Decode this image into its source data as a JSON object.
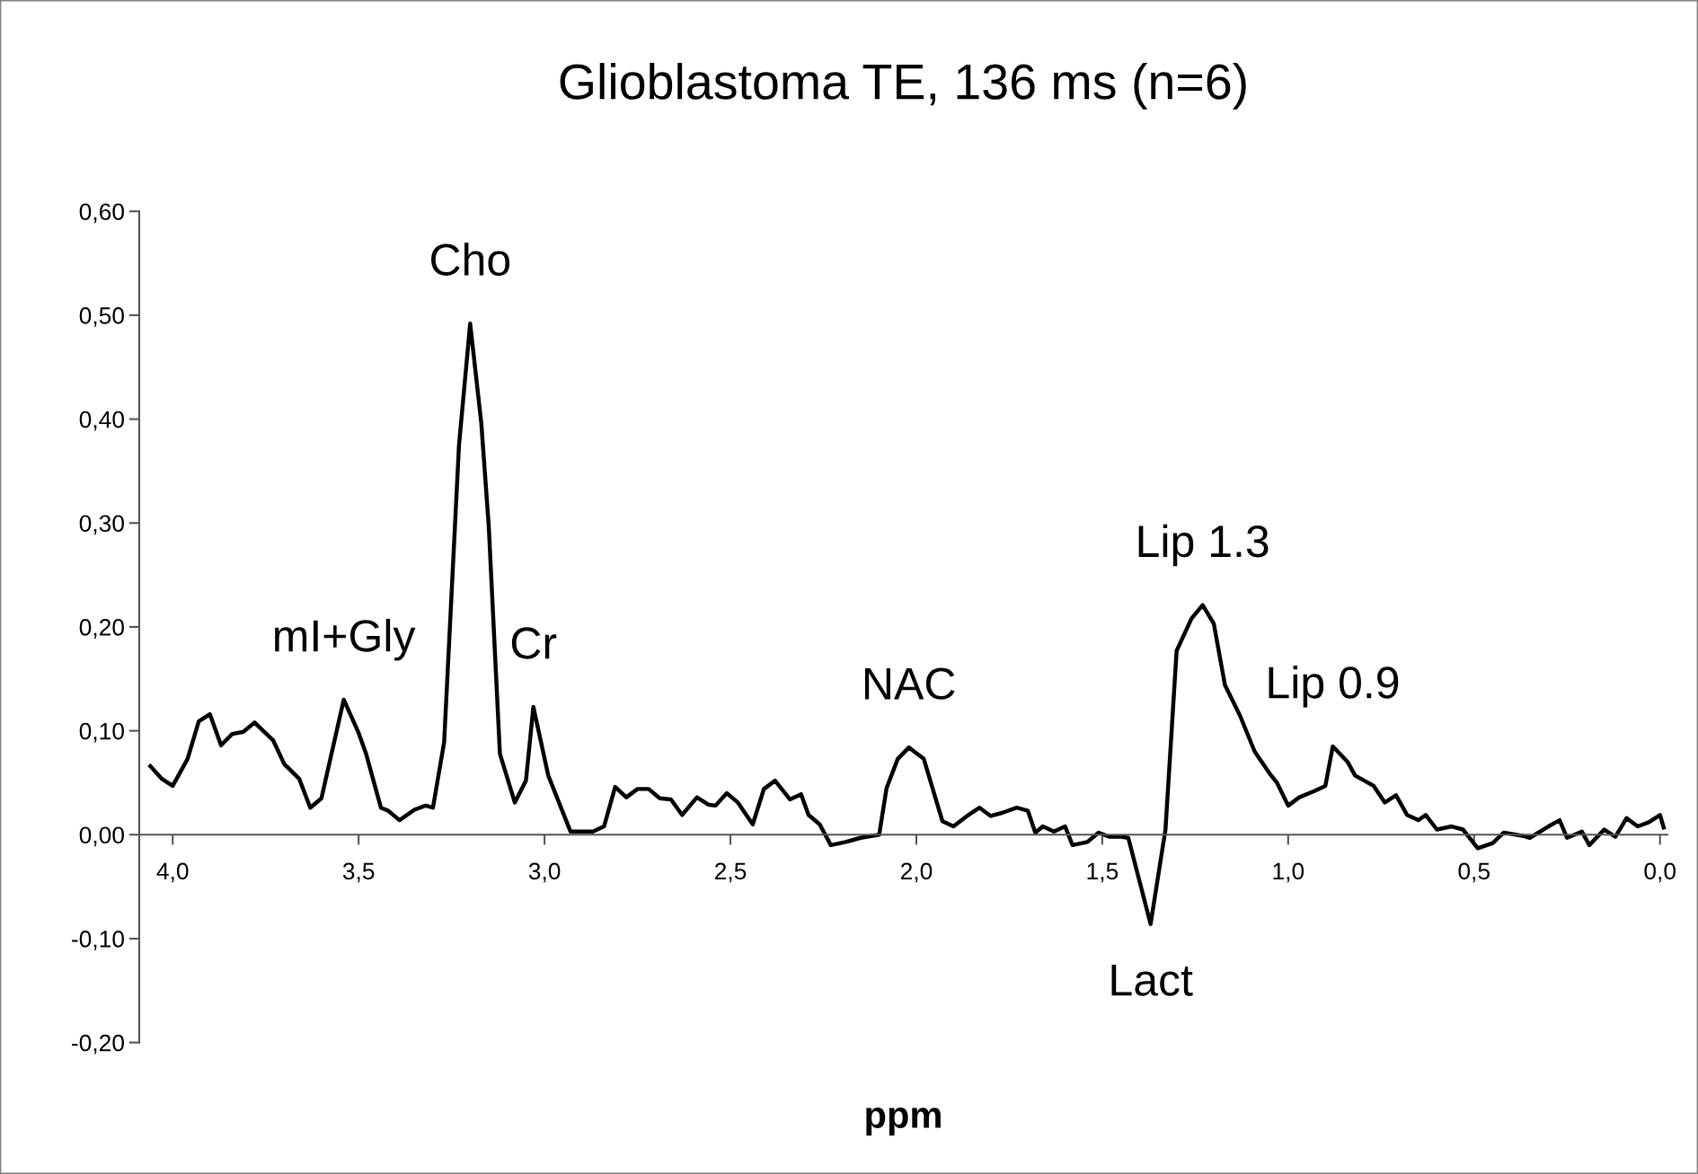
{
  "chart_data": {
    "type": "line",
    "title": "Glioblastoma TE, 136 ms (n=6)",
    "xlabel": "ppm",
    "series": [
      {
        "color": "#000000",
        "x": [
          4.06,
          4.03,
          4.0,
          3.96,
          3.93,
          3.9,
          3.87,
          3.84,
          3.81,
          3.78,
          3.73,
          3.7,
          3.66,
          3.63,
          3.6,
          3.54,
          3.5,
          3.48,
          3.44,
          3.42,
          3.39,
          3.35,
          3.32,
          3.3,
          3.27,
          3.23,
          3.2,
          3.17,
          3.15,
          3.12,
          3.08,
          3.05,
          3.03,
          2.99,
          2.93,
          2.87,
          2.84,
          2.81,
          2.78,
          2.75,
          2.72,
          2.69,
          2.66,
          2.63,
          2.59,
          2.56,
          2.54,
          2.51,
          2.48,
          2.44,
          2.41,
          2.38,
          2.34,
          2.31,
          2.29,
          2.26,
          2.23,
          2.19,
          2.15,
          2.1,
          2.08,
          2.05,
          2.02,
          1.98,
          1.93,
          1.9,
          1.86,
          1.83,
          1.8,
          1.77,
          1.73,
          1.7,
          1.68,
          1.66,
          1.63,
          1.6,
          1.58,
          1.54,
          1.51,
          1.48,
          1.45,
          1.43,
          1.37,
          1.33,
          1.3,
          1.26,
          1.23,
          1.2,
          1.17,
          1.13,
          1.09,
          1.05,
          1.03,
          1.0,
          0.97,
          0.93,
          0.9,
          0.88,
          0.84,
          0.82,
          0.77,
          0.74,
          0.71,
          0.68,
          0.65,
          0.63,
          0.6,
          0.56,
          0.53,
          0.49,
          0.45,
          0.42,
          0.37,
          0.35,
          0.3,
          0.27,
          0.25,
          0.21,
          0.19,
          0.15,
          0.12,
          0.09,
          0.06,
          0.03,
          0.0,
          -0.01
        ],
        "values": [
          0.066,
          0.054,
          0.047,
          0.073,
          0.109,
          0.116,
          0.086,
          0.097,
          0.099,
          0.108,
          0.091,
          0.068,
          0.054,
          0.026,
          0.035,
          0.13,
          0.098,
          0.078,
          0.026,
          0.023,
          0.014,
          0.024,
          0.028,
          0.026,
          0.089,
          0.375,
          0.492,
          0.396,
          0.297,
          0.078,
          0.031,
          0.052,
          0.123,
          0.057,
          0.003,
          0.003,
          0.008,
          0.046,
          0.036,
          0.044,
          0.044,
          0.035,
          0.034,
          0.019,
          0.036,
          0.029,
          0.028,
          0.04,
          0.031,
          0.01,
          0.044,
          0.052,
          0.034,
          0.039,
          0.019,
          0.01,
          -0.01,
          -0.007,
          -0.003,
          0.0,
          0.045,
          0.073,
          0.084,
          0.073,
          0.013,
          0.008,
          0.019,
          0.026,
          0.018,
          0.021,
          0.026,
          0.023,
          0.002,
          0.008,
          0.003,
          0.008,
          -0.01,
          -0.007,
          0.002,
          -0.002,
          -0.002,
          -0.003,
          -0.086,
          0.005,
          0.177,
          0.208,
          0.221,
          0.203,
          0.144,
          0.115,
          0.08,
          0.059,
          0.05,
          0.028,
          0.036,
          0.042,
          0.047,
          0.085,
          0.07,
          0.057,
          0.047,
          0.031,
          0.038,
          0.019,
          0.014,
          0.019,
          0.005,
          0.008,
          0.005,
          -0.013,
          -0.008,
          0.002,
          -0.001,
          -0.003,
          0.008,
          0.014,
          -0.003,
          0.003,
          -0.01,
          0.005,
          -0.002,
          0.016,
          0.008,
          0.012,
          0.019,
          0.007
        ]
      }
    ],
    "xlim": [
      4.09,
      -0.02
    ],
    "xticks": [
      {
        "value": 4.0,
        "label": "4,0"
      },
      {
        "value": 3.5,
        "label": "3,5"
      },
      {
        "value": 3.0,
        "label": "3,0"
      },
      {
        "value": 2.5,
        "label": "2,5"
      },
      {
        "value": 2.0,
        "label": "2,0"
      },
      {
        "value": 1.5,
        "label": "1,5"
      },
      {
        "value": 1.0,
        "label": "1,0"
      },
      {
        "value": 0.5,
        "label": "0,5"
      },
      {
        "value": 0.0,
        "label": "0,0"
      }
    ],
    "ylim": [
      -0.2,
      0.6
    ],
    "yticks": [
      {
        "value": -0.2,
        "label": "-0,20"
      },
      {
        "value": -0.1,
        "label": "-0,10"
      },
      {
        "value": 0.0,
        "label": "0,00"
      },
      {
        "value": 0.1,
        "label": "0,10"
      },
      {
        "value": 0.2,
        "label": "0,20"
      },
      {
        "value": 0.3,
        "label": "0,30"
      },
      {
        "value": 0.4,
        "label": "0,40"
      },
      {
        "value": 0.5,
        "label": "0,50"
      },
      {
        "value": 0.6,
        "label": "0,60"
      }
    ],
    "grid": false,
    "marker": "none",
    "line_style": "solid",
    "annotations": [
      {
        "text": "Cho",
        "x": 3.2,
        "y": 0.492
      },
      {
        "text": "mI+Gly",
        "x": 3.54,
        "y": 0.13
      },
      {
        "text": "Cr",
        "x": 3.03,
        "y": 0.123
      },
      {
        "text": "NAC",
        "x": 2.02,
        "y": 0.084
      },
      {
        "text": "Lip 1.3",
        "x": 1.23,
        "y": 0.221
      },
      {
        "text": "Lip 0.9",
        "x": 0.88,
        "y": 0.085
      },
      {
        "text": "Lact",
        "x": 1.37,
        "y": -0.086
      }
    ]
  }
}
